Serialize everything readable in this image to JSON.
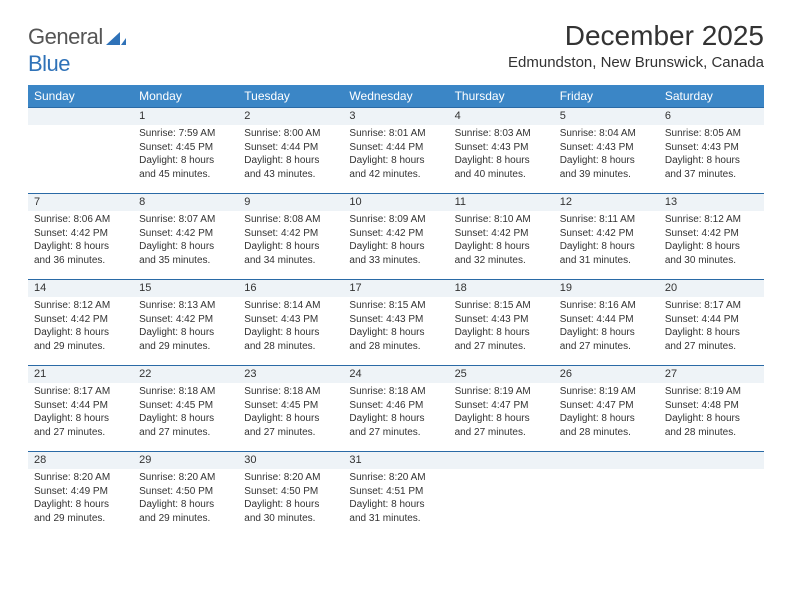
{
  "logo": {
    "word1": "General",
    "word2": "Blue"
  },
  "title": "December 2025",
  "location": "Edmundston, New Brunswick, Canada",
  "colors": {
    "header_bg": "#3b86c6",
    "header_text": "#ffffff",
    "daynum_bg": "#eef3f7",
    "rule": "#2a6aa6",
    "logo_blue": "#2f72b8"
  },
  "day_headers": [
    "Sunday",
    "Monday",
    "Tuesday",
    "Wednesday",
    "Thursday",
    "Friday",
    "Saturday"
  ],
  "weeks": [
    [
      {
        "n": "",
        "sunrise": "",
        "sunset": "",
        "daylight": ""
      },
      {
        "n": "1",
        "sunrise": "Sunrise: 7:59 AM",
        "sunset": "Sunset: 4:45 PM",
        "daylight": "Daylight: 8 hours and 45 minutes."
      },
      {
        "n": "2",
        "sunrise": "Sunrise: 8:00 AM",
        "sunset": "Sunset: 4:44 PM",
        "daylight": "Daylight: 8 hours and 43 minutes."
      },
      {
        "n": "3",
        "sunrise": "Sunrise: 8:01 AM",
        "sunset": "Sunset: 4:44 PM",
        "daylight": "Daylight: 8 hours and 42 minutes."
      },
      {
        "n": "4",
        "sunrise": "Sunrise: 8:03 AM",
        "sunset": "Sunset: 4:43 PM",
        "daylight": "Daylight: 8 hours and 40 minutes."
      },
      {
        "n": "5",
        "sunrise": "Sunrise: 8:04 AM",
        "sunset": "Sunset: 4:43 PM",
        "daylight": "Daylight: 8 hours and 39 minutes."
      },
      {
        "n": "6",
        "sunrise": "Sunrise: 8:05 AM",
        "sunset": "Sunset: 4:43 PM",
        "daylight": "Daylight: 8 hours and 37 minutes."
      }
    ],
    [
      {
        "n": "7",
        "sunrise": "Sunrise: 8:06 AM",
        "sunset": "Sunset: 4:42 PM",
        "daylight": "Daylight: 8 hours and 36 minutes."
      },
      {
        "n": "8",
        "sunrise": "Sunrise: 8:07 AM",
        "sunset": "Sunset: 4:42 PM",
        "daylight": "Daylight: 8 hours and 35 minutes."
      },
      {
        "n": "9",
        "sunrise": "Sunrise: 8:08 AM",
        "sunset": "Sunset: 4:42 PM",
        "daylight": "Daylight: 8 hours and 34 minutes."
      },
      {
        "n": "10",
        "sunrise": "Sunrise: 8:09 AM",
        "sunset": "Sunset: 4:42 PM",
        "daylight": "Daylight: 8 hours and 33 minutes."
      },
      {
        "n": "11",
        "sunrise": "Sunrise: 8:10 AM",
        "sunset": "Sunset: 4:42 PM",
        "daylight": "Daylight: 8 hours and 32 minutes."
      },
      {
        "n": "12",
        "sunrise": "Sunrise: 8:11 AM",
        "sunset": "Sunset: 4:42 PM",
        "daylight": "Daylight: 8 hours and 31 minutes."
      },
      {
        "n": "13",
        "sunrise": "Sunrise: 8:12 AM",
        "sunset": "Sunset: 4:42 PM",
        "daylight": "Daylight: 8 hours and 30 minutes."
      }
    ],
    [
      {
        "n": "14",
        "sunrise": "Sunrise: 8:12 AM",
        "sunset": "Sunset: 4:42 PM",
        "daylight": "Daylight: 8 hours and 29 minutes."
      },
      {
        "n": "15",
        "sunrise": "Sunrise: 8:13 AM",
        "sunset": "Sunset: 4:42 PM",
        "daylight": "Daylight: 8 hours and 29 minutes."
      },
      {
        "n": "16",
        "sunrise": "Sunrise: 8:14 AM",
        "sunset": "Sunset: 4:43 PM",
        "daylight": "Daylight: 8 hours and 28 minutes."
      },
      {
        "n": "17",
        "sunrise": "Sunrise: 8:15 AM",
        "sunset": "Sunset: 4:43 PM",
        "daylight": "Daylight: 8 hours and 28 minutes."
      },
      {
        "n": "18",
        "sunrise": "Sunrise: 8:15 AM",
        "sunset": "Sunset: 4:43 PM",
        "daylight": "Daylight: 8 hours and 27 minutes."
      },
      {
        "n": "19",
        "sunrise": "Sunrise: 8:16 AM",
        "sunset": "Sunset: 4:44 PM",
        "daylight": "Daylight: 8 hours and 27 minutes."
      },
      {
        "n": "20",
        "sunrise": "Sunrise: 8:17 AM",
        "sunset": "Sunset: 4:44 PM",
        "daylight": "Daylight: 8 hours and 27 minutes."
      }
    ],
    [
      {
        "n": "21",
        "sunrise": "Sunrise: 8:17 AM",
        "sunset": "Sunset: 4:44 PM",
        "daylight": "Daylight: 8 hours and 27 minutes."
      },
      {
        "n": "22",
        "sunrise": "Sunrise: 8:18 AM",
        "sunset": "Sunset: 4:45 PM",
        "daylight": "Daylight: 8 hours and 27 minutes."
      },
      {
        "n": "23",
        "sunrise": "Sunrise: 8:18 AM",
        "sunset": "Sunset: 4:45 PM",
        "daylight": "Daylight: 8 hours and 27 minutes."
      },
      {
        "n": "24",
        "sunrise": "Sunrise: 8:18 AM",
        "sunset": "Sunset: 4:46 PM",
        "daylight": "Daylight: 8 hours and 27 minutes."
      },
      {
        "n": "25",
        "sunrise": "Sunrise: 8:19 AM",
        "sunset": "Sunset: 4:47 PM",
        "daylight": "Daylight: 8 hours and 27 minutes."
      },
      {
        "n": "26",
        "sunrise": "Sunrise: 8:19 AM",
        "sunset": "Sunset: 4:47 PM",
        "daylight": "Daylight: 8 hours and 28 minutes."
      },
      {
        "n": "27",
        "sunrise": "Sunrise: 8:19 AM",
        "sunset": "Sunset: 4:48 PM",
        "daylight": "Daylight: 8 hours and 28 minutes."
      }
    ],
    [
      {
        "n": "28",
        "sunrise": "Sunrise: 8:20 AM",
        "sunset": "Sunset: 4:49 PM",
        "daylight": "Daylight: 8 hours and 29 minutes."
      },
      {
        "n": "29",
        "sunrise": "Sunrise: 8:20 AM",
        "sunset": "Sunset: 4:50 PM",
        "daylight": "Daylight: 8 hours and 29 minutes."
      },
      {
        "n": "30",
        "sunrise": "Sunrise: 8:20 AM",
        "sunset": "Sunset: 4:50 PM",
        "daylight": "Daylight: 8 hours and 30 minutes."
      },
      {
        "n": "31",
        "sunrise": "Sunrise: 8:20 AM",
        "sunset": "Sunset: 4:51 PM",
        "daylight": "Daylight: 8 hours and 31 minutes."
      },
      {
        "n": "",
        "sunrise": "",
        "sunset": "",
        "daylight": ""
      },
      {
        "n": "",
        "sunrise": "",
        "sunset": "",
        "daylight": ""
      },
      {
        "n": "",
        "sunrise": "",
        "sunset": "",
        "daylight": ""
      }
    ]
  ]
}
